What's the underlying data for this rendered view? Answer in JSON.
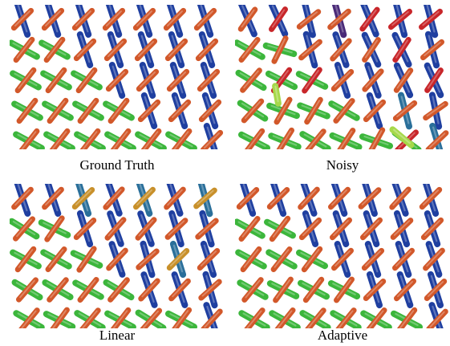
{
  "figure": {
    "panels": [
      {
        "caption": "Ground Truth",
        "variant": "ground_truth"
      },
      {
        "caption": "Noisy",
        "variant": "noisy"
      },
      {
        "caption": "Linear",
        "variant": "linear"
      },
      {
        "caption": "Adaptive",
        "variant": "adaptive"
      }
    ],
    "colors": {
      "blue": "#1f3fa0",
      "orange": "#d2582a",
      "green": "#3cb63c",
      "red": "#c8262a",
      "teal": "#2a6f9a",
      "purple": "#4a2a78",
      "lime": "#a6d84a",
      "gold": "#c8902a"
    }
  }
}
